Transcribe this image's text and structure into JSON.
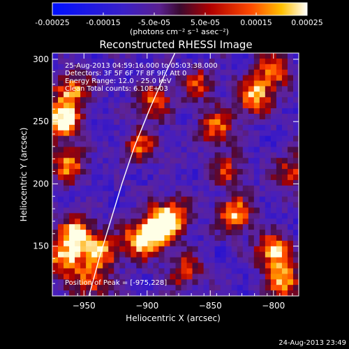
{
  "chart_data": {
    "type": "heatmap",
    "title": "Reconstructed RHESSI Image",
    "xlabel": "Heliocentric X (arcsec)",
    "ylabel": "Heliocentric Y (arcsec)",
    "xlim": [
      -975,
      -780
    ],
    "ylim": [
      110,
      305
    ],
    "x_ticks": [
      -950,
      -900,
      -850,
      -800
    ],
    "y_ticks": [
      150,
      200,
      250,
      300
    ],
    "colorbar": {
      "range": [
        -0.00025,
        0.00025
      ],
      "tick_labels": [
        "-0.00025",
        "-0.00015",
        "-5.0e-05",
        "5.0e-05",
        "0.00015",
        "0.00025"
      ],
      "tick_values": [
        -0.00025,
        -0.00015,
        -5e-05,
        5e-05,
        0.00015,
        0.00025
      ],
      "unit_label": "(photons cm⁻² s⁻¹ asec⁻²)"
    },
    "annotations": [
      "25-Aug-2013 04:59:16.000 to 05:03:38.000",
      "Detectors: 3F 5F 6F 7F 8F 9F, Att 0",
      "Energy Range: 12.0 - 25.0 keV",
      "Clean    Total counts: 6.10E+03"
    ],
    "peak_label": "Position of Peak = [-975,228]",
    "limb_curve": [
      [
        -946,
        110
      ],
      [
        -938,
        140
      ],
      [
        -929,
        170
      ],
      [
        -920,
        200
      ],
      [
        -910,
        230
      ],
      [
        -898,
        260
      ],
      [
        -885,
        290
      ],
      [
        -878,
        305
      ]
    ],
    "hot_regions": [
      {
        "x": -967,
        "y": 250,
        "strength": 1.0
      },
      {
        "x": -960,
        "y": 275,
        "strength": 0.8
      },
      {
        "x": -962,
        "y": 215,
        "strength": 0.7
      },
      {
        "x": -955,
        "y": 160,
        "strength": 0.9
      },
      {
        "x": -965,
        "y": 140,
        "strength": 0.85
      },
      {
        "x": -935,
        "y": 145,
        "strength": 0.7
      },
      {
        "x": -905,
        "y": 155,
        "strength": 0.9
      },
      {
        "x": -890,
        "y": 165,
        "strength": 0.85
      },
      {
        "x": -880,
        "y": 175,
        "strength": 0.7
      },
      {
        "x": -830,
        "y": 175,
        "strength": 0.8
      },
      {
        "x": -800,
        "y": 145,
        "strength": 0.9
      },
      {
        "x": -790,
        "y": 120,
        "strength": 0.8
      },
      {
        "x": -815,
        "y": 270,
        "strength": 0.8
      },
      {
        "x": -800,
        "y": 290,
        "strength": 0.7
      },
      {
        "x": -845,
        "y": 245,
        "strength": 0.7
      },
      {
        "x": -895,
        "y": 265,
        "strength": 0.6
      },
      {
        "x": -905,
        "y": 230,
        "strength": 0.55
      },
      {
        "x": -860,
        "y": 280,
        "strength": 0.5
      },
      {
        "x": -835,
        "y": 210,
        "strength": 0.5
      },
      {
        "x": -945,
        "y": 120,
        "strength": 0.6
      },
      {
        "x": -870,
        "y": 130,
        "strength": 0.55
      },
      {
        "x": -785,
        "y": 210,
        "strength": 0.6
      }
    ]
  },
  "footer": {
    "timestamp": "24-Aug-2013 23:49"
  }
}
